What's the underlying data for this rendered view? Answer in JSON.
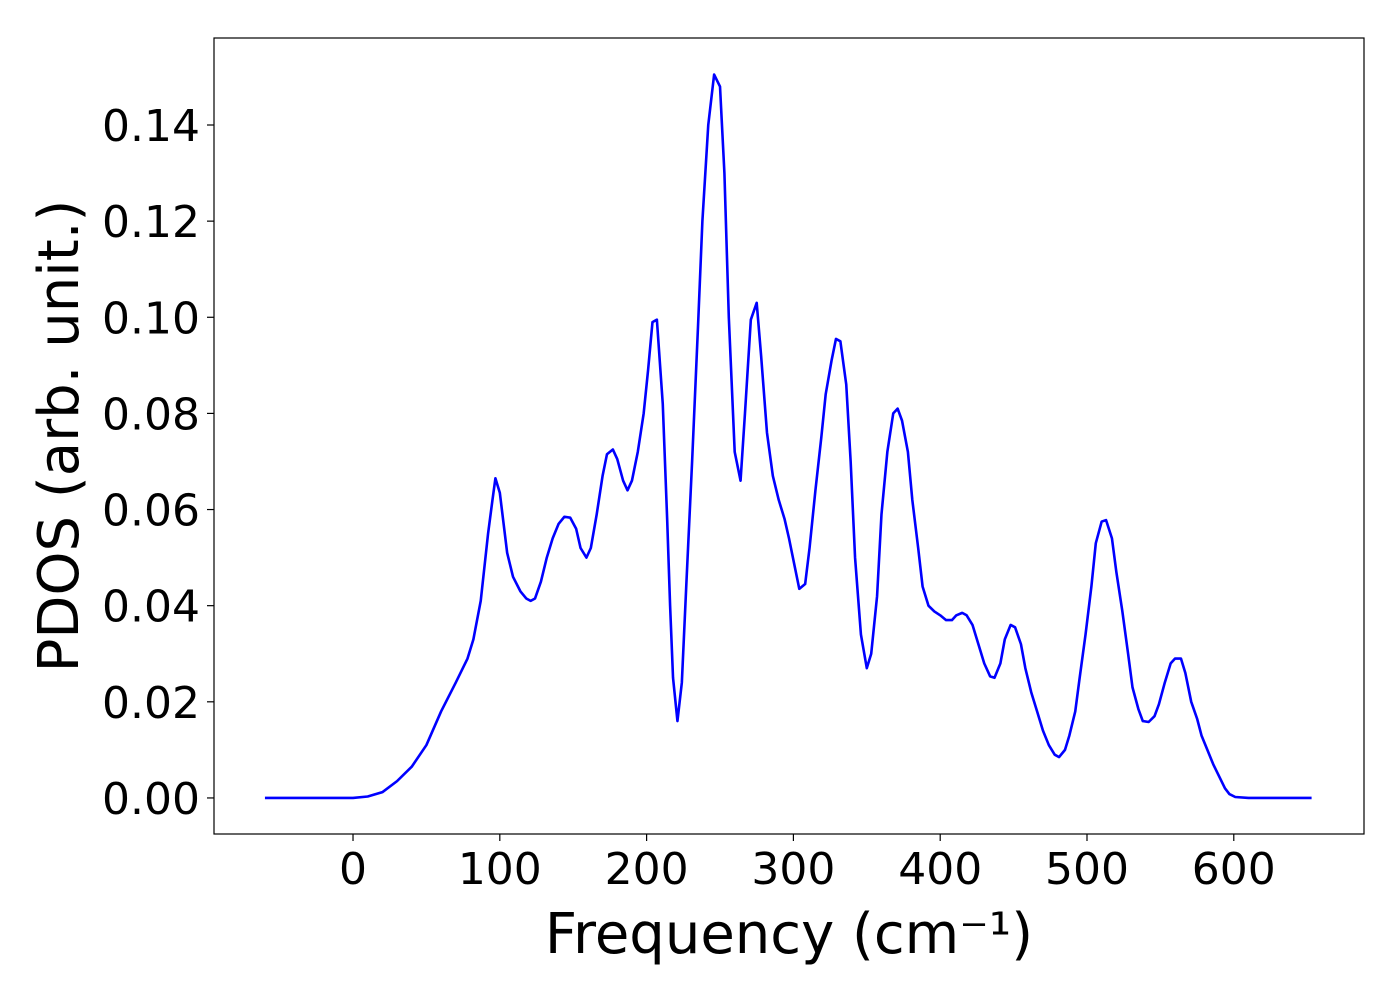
{
  "chart_data": {
    "type": "line",
    "xlabel": "Frequency (cm⁻¹)",
    "ylabel": "PDOS (arb. unit.)",
    "color": "#0000ff",
    "xlim": [
      -94.7,
      688.7
    ],
    "ylim": [
      -0.0075,
      0.1581
    ],
    "xticks": [
      0,
      100,
      200,
      300,
      400,
      500,
      600
    ],
    "yticks": [
      {
        "value": 0,
        "label": "0.00"
      },
      {
        "value": 0.02,
        "label": "0.02"
      },
      {
        "value": 0.04,
        "label": "0.04"
      },
      {
        "value": 0.06,
        "label": "0.06"
      },
      {
        "value": 0.08,
        "label": "0.08"
      },
      {
        "value": 0.1,
        "label": "0.10"
      },
      {
        "value": 0.12,
        "label": "0.12"
      },
      {
        "value": 0.14,
        "label": "0.14"
      }
    ],
    "x": [
      -60,
      0,
      10,
      20,
      30,
      40,
      50,
      60,
      70,
      78,
      82,
      87,
      92,
      95,
      97,
      100,
      105,
      109,
      114,
      118,
      121,
      124,
      128,
      132,
      136,
      140,
      144,
      148,
      152,
      155,
      159,
      162,
      166,
      170,
      173,
      177,
      180,
      184,
      187,
      190,
      194,
      198,
      201,
      204,
      207,
      211,
      214,
      216,
      218,
      221,
      224,
      227,
      231,
      235,
      238,
      242,
      246,
      250,
      253,
      256,
      260,
      264,
      267,
      271,
      275,
      278,
      282,
      286,
      290,
      294,
      297,
      301,
      304,
      308,
      311,
      315,
      319,
      322,
      326,
      329,
      332,
      336,
      339,
      342,
      346,
      350,
      353,
      357,
      360,
      364,
      368,
      371,
      374,
      378,
      381,
      385,
      388,
      392,
      396,
      400,
      404,
      408,
      411,
      415,
      418,
      422,
      426,
      430,
      434,
      437,
      441,
      444,
      448,
      451,
      455,
      458,
      462,
      466,
      470,
      474,
      478,
      481,
      485,
      488,
      492,
      495,
      499,
      503,
      506,
      510,
      513,
      517,
      520,
      524,
      528,
      531,
      535,
      538,
      542,
      546,
      549,
      553,
      557,
      560,
      564,
      567,
      571,
      575,
      578,
      582,
      586,
      590,
      594,
      597,
      601,
      610,
      653
    ],
    "values": [
      0,
      0,
      0.0003,
      0.0012,
      0.0035,
      0.0065,
      0.011,
      0.018,
      0.024,
      0.029,
      0.033,
      0.041,
      0.055,
      0.062,
      0.0665,
      0.0635,
      0.051,
      0.046,
      0.043,
      0.0415,
      0.041,
      0.0415,
      0.045,
      0.05,
      0.054,
      0.057,
      0.0585,
      0.0583,
      0.056,
      0.052,
      0.05,
      0.052,
      0.059,
      0.067,
      0.0715,
      0.0725,
      0.0705,
      0.066,
      0.064,
      0.066,
      0.072,
      0.08,
      0.089,
      0.099,
      0.0995,
      0.082,
      0.058,
      0.04,
      0.025,
      0.016,
      0.024,
      0.044,
      0.07,
      0.098,
      0.12,
      0.14,
      0.1505,
      0.148,
      0.13,
      0.1,
      0.072,
      0.066,
      0.08,
      0.0995,
      0.103,
      0.092,
      0.076,
      0.067,
      0.062,
      0.058,
      0.054,
      0.048,
      0.0435,
      0.0445,
      0.052,
      0.064,
      0.075,
      0.084,
      0.091,
      0.0955,
      0.095,
      0.086,
      0.07,
      0.05,
      0.034,
      0.027,
      0.03,
      0.042,
      0.059,
      0.072,
      0.08,
      0.081,
      0.0785,
      0.072,
      0.062,
      0.052,
      0.044,
      0.04,
      0.0388,
      0.038,
      0.037,
      0.037,
      0.038,
      0.0385,
      0.038,
      0.036,
      0.032,
      0.028,
      0.0253,
      0.025,
      0.028,
      0.033,
      0.036,
      0.0355,
      0.032,
      0.027,
      0.022,
      0.018,
      0.014,
      0.011,
      0.009,
      0.0085,
      0.01,
      0.013,
      0.018,
      0.025,
      0.034,
      0.044,
      0.053,
      0.0575,
      0.0578,
      0.054,
      0.047,
      0.039,
      0.03,
      0.023,
      0.0185,
      0.016,
      0.0158,
      0.017,
      0.0195,
      0.024,
      0.028,
      0.029,
      0.029,
      0.026,
      0.02,
      0.0165,
      0.013,
      0.01,
      0.007,
      0.0045,
      0.002,
      0.0008,
      0.0002,
      0,
      0
    ]
  }
}
